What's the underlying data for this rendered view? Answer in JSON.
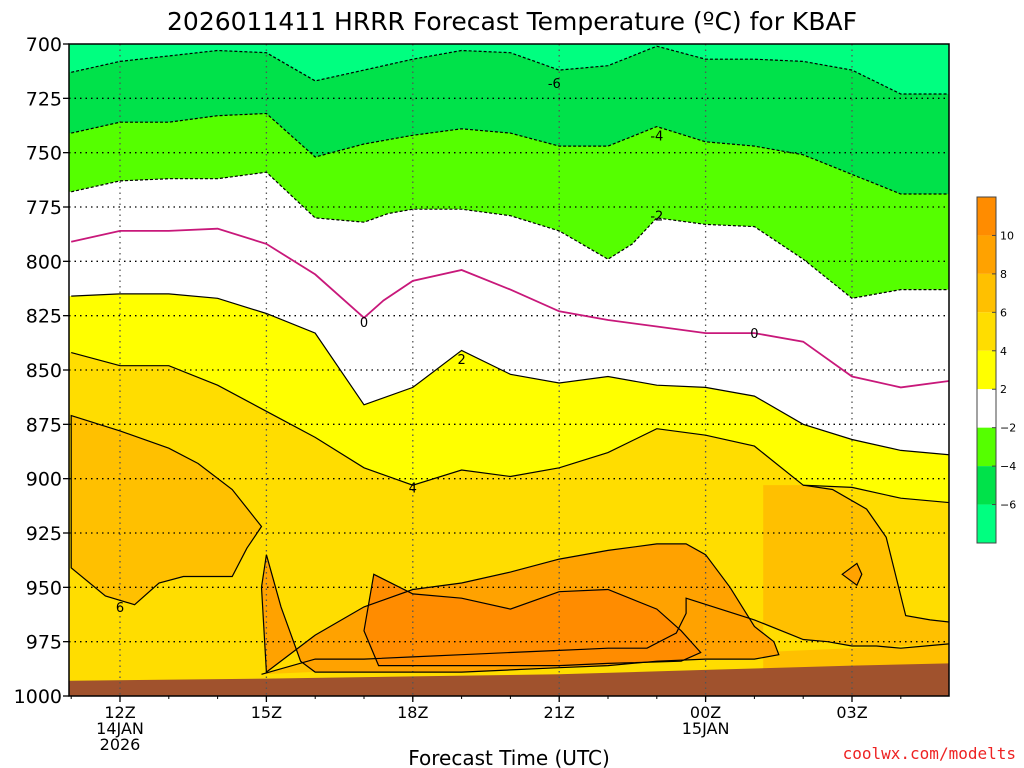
{
  "chart_data": {
    "type": "heatmap",
    "title": "2026011411 HRRR Forecast Temperature (ºC) for KBAF",
    "xlabel": "Forecast Time (UTC)",
    "ylabel": "",
    "watermark": "coolwx.com/modelts",
    "x_ticks": [
      {
        "hour": 12,
        "lines": [
          "12Z",
          "14JAN",
          "2026"
        ]
      },
      {
        "hour": 15,
        "lines": [
          "15Z"
        ]
      },
      {
        "hour": 18,
        "lines": [
          "18Z"
        ]
      },
      {
        "hour": 21,
        "lines": [
          "21Z"
        ]
      },
      {
        "hour": 24,
        "lines": [
          "00Z",
          "15JAN"
        ]
      },
      {
        "hour": 27,
        "lines": [
          "03Z"
        ]
      }
    ],
    "xlim": [
      11,
      29
    ],
    "ylim_pressure_hpa": [
      700,
      1000
    ],
    "y_ticks": [
      700,
      725,
      750,
      775,
      800,
      825,
      850,
      875,
      900,
      925,
      950,
      975,
      1000
    ],
    "y_tick_labels": [
      "700",
      "725",
      "750",
      "775",
      "800",
      "825",
      "850",
      "875",
      "900",
      "925",
      "950",
      "975",
      "1000"
    ],
    "grid": true,
    "fill_boundary_levels_celsius": [
      -6,
      -4,
      -2,
      0,
      2,
      4,
      6,
      8,
      10
    ],
    "contour_labels": [
      {
        "value": "-6",
        "x": 20.9,
        "p": 718
      },
      {
        "value": "-4",
        "x": 23.0,
        "p": 742
      },
      {
        "value": "-2",
        "x": 23.0,
        "p": 779
      },
      {
        "value": "0",
        "x": 17.0,
        "p": 828
      },
      {
        "value": "0",
        "x": 25.0,
        "p": 833
      },
      {
        "value": "2",
        "x": 19.0,
        "p": 845
      },
      {
        "value": "4",
        "x": 18.0,
        "p": 904
      },
      {
        "value": "6",
        "x": 12.0,
        "p": 959
      }
    ],
    "colorbar": {
      "labels": [
        "10",
        "8",
        "6",
        "4",
        "2",
        "−2",
        "−4",
        "−6"
      ],
      "bins": [
        {
          "from": 10,
          "to": 12,
          "color": "#ff8c00"
        },
        {
          "from": 8,
          "to": 10,
          "color": "#ffa200"
        },
        {
          "from": 6,
          "to": 8,
          "color": "#ffc000"
        },
        {
          "from": 4,
          "to": 6,
          "color": "#ffdd00"
        },
        {
          "from": 2,
          "to": 4,
          "color": "#ffff00"
        },
        {
          "from": -2,
          "to": 2,
          "color": "#ffffff"
        },
        {
          "from": -4,
          "to": -2,
          "color": "#55ff00"
        },
        {
          "from": -6,
          "to": -4,
          "color": "#00e24a"
        },
        {
          "from": -8,
          "to": -6,
          "color": "#00ff80"
        }
      ]
    },
    "region_colors": {
      "le_m6": "#00ff80",
      "m6_m4": "#00e24a",
      "m4_m2": "#55ff00",
      "m2_2": "#ffffff",
      "t2_4": "#ffff00",
      "t4_6": "#ffdd00",
      "t6_8": "#ffc000",
      "t8_10": "#ffa200",
      "ge_10": "#ff8c00",
      "ground": "#a0522d",
      "zero_line": "#c8187a"
    },
    "contours": {
      "m6": {
        "x": [
          11,
          12,
          14,
          15,
          16,
          17,
          18,
          19,
          20,
          21,
          22,
          23,
          24,
          25,
          26,
          27,
          28,
          29
        ],
        "p": [
          713,
          708,
          703,
          704,
          717,
          712,
          707,
          703,
          704,
          712,
          710,
          701,
          707,
          707,
          708,
          712,
          723,
          723
        ]
      },
      "m4": {
        "x": [
          11,
          12,
          13,
          14,
          15,
          16,
          17,
          18,
          19,
          20,
          21,
          22,
          23,
          24,
          25,
          26,
          27,
          28,
          29
        ],
        "p": [
          741,
          736,
          736,
          733,
          732,
          752,
          746,
          742,
          739,
          741,
          747,
          747,
          738,
          745,
          747,
          751,
          760,
          769,
          769
        ]
      },
      "m2": {
        "x": [
          11,
          12,
          13,
          14,
          15,
          16,
          17,
          17.5,
          18,
          19,
          20,
          21,
          22,
          22.5,
          23,
          24,
          25,
          26,
          27,
          28,
          29
        ],
        "p": [
          768,
          763,
          762,
          762,
          759,
          780,
          782,
          778,
          776,
          776,
          779,
          786,
          799,
          792,
          780,
          783,
          784,
          799,
          817,
          813,
          813
        ]
      },
      "zero": {
        "x": [
          11,
          12,
          13,
          14,
          15,
          16,
          17,
          17.4,
          18,
          19,
          20,
          21,
          22,
          23,
          24,
          25,
          26,
          27,
          28,
          29
        ],
        "p": [
          791,
          786,
          786,
          785,
          792,
          806,
          826,
          818,
          809,
          804,
          813,
          823,
          827,
          830,
          833,
          833,
          837,
          853,
          858,
          855
        ]
      },
      "t2": {
        "x": [
          11,
          12,
          13,
          14,
          15,
          16,
          17,
          18,
          19,
          20,
          21,
          22,
          23,
          24,
          25,
          26,
          27,
          28,
          29
        ],
        "p": [
          816,
          815,
          815,
          817,
          824,
          833,
          866,
          858,
          841,
          852,
          856,
          853,
          857,
          858,
          862,
          875,
          882,
          887,
          889
        ]
      },
      "t4": {
        "x": [
          11,
          12,
          13,
          14,
          15,
          16,
          17,
          18,
          19,
          20,
          21,
          22,
          23,
          24,
          25,
          26,
          27,
          28,
          29
        ],
        "p": [
          842,
          848,
          848,
          857,
          869,
          881,
          895,
          903,
          896,
          899,
          895,
          888,
          877,
          880,
          885,
          903,
          904,
          909,
          911
        ]
      },
      "t6a": {
        "x": [
          11,
          12,
          13,
          13.6,
          14.3,
          14.9,
          14.6,
          14.3,
          13.3,
          12.8,
          12.3,
          11.7,
          11
        ],
        "p": [
          871,
          878,
          886,
          893,
          905,
          922,
          932,
          945,
          945,
          948,
          958,
          954,
          941
        ]
      },
      "t6b": {
        "x": [
          14.9,
          16,
          17,
          18,
          19,
          20,
          21,
          21.5,
          22,
          22.8,
          23.4,
          23.6,
          23.6,
          25,
          26,
          26.5,
          27,
          27.5,
          28,
          28.5,
          29
        ],
        "p": [
          990,
          983,
          983,
          982,
          981,
          980,
          979,
          978.5,
          978,
          978,
          971,
          962,
          955,
          965,
          974,
          975,
          977,
          977,
          978,
          977,
          976
        ]
      },
      "t6c": {
        "x": [
          26,
          26.6,
          27.3,
          27.7,
          28.1,
          28.6,
          29
        ],
        "p": [
          903,
          905,
          914,
          927,
          963,
          965,
          966
        ]
      },
      "t8": {
        "x": [
          15,
          16,
          17,
          18,
          19,
          20,
          21,
          22,
          23,
          23.6,
          24,
          24.5,
          25,
          25.4,
          25.5,
          25,
          24,
          23,
          22,
          21,
          20,
          19,
          18,
          17,
          16,
          15.7,
          15.3,
          15,
          14.9
        ],
        "p": [
          989,
          972,
          959,
          951,
          948,
          943,
          937,
          933,
          930,
          930,
          935,
          950,
          968,
          975,
          981,
          983,
          983,
          984,
          986,
          987,
          988,
          989,
          989,
          989,
          989,
          984,
          959,
          935,
          950
        ]
      },
      "t10": {
        "x": [
          17.2,
          18,
          19,
          20,
          21,
          22,
          23,
          23.5,
          23.9,
          23.5,
          22,
          21,
          20,
          19,
          18,
          17.3,
          17
        ],
        "p": [
          944,
          953,
          955,
          960,
          952,
          951,
          960,
          970,
          980,
          984,
          985,
          986,
          986,
          986,
          986,
          986,
          970
        ]
      },
      "t8_blob": {
        "x": [
          26.8,
          27.1,
          27.2,
          27.1,
          26.8
        ],
        "p": [
          944,
          939,
          944,
          949,
          944
        ]
      },
      "ground": {
        "x": [
          11,
          15,
          18,
          21,
          24,
          27,
          29
        ],
        "p": [
          993,
          992,
          991,
          990,
          988,
          986,
          985
        ]
      }
    }
  }
}
